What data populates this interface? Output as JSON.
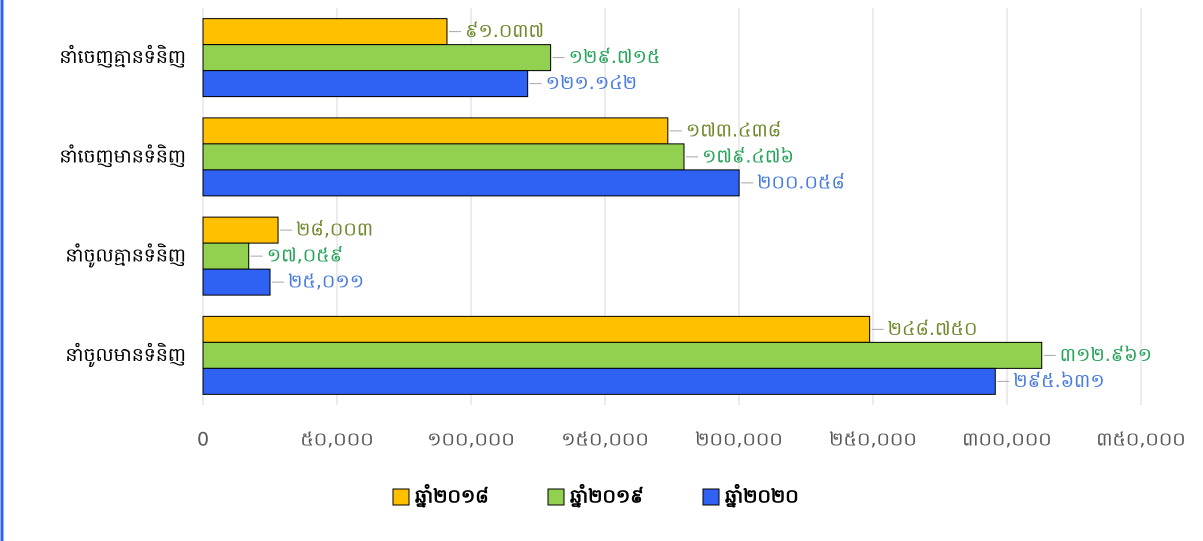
{
  "chart_data": {
    "type": "bar",
    "orientation": "horizontal",
    "categories": [
      "នាំចេញគ្មានទំនិញ",
      "នាំចេញមានទំនិញ",
      "នាំចូលគ្មានទំនិញ",
      "នាំចូលមានទំនិញ"
    ],
    "series": [
      {
        "name": "ឆ្នាំ២០១៨",
        "color": "#ffc000",
        "label_color": "#6f8a2c",
        "values": [
          91037,
          173438,
          28003,
          248750
        ],
        "value_labels": [
          "៩១.០៣៧",
          "១៧៣.៤៣៨",
          "២៨,០០៣",
          "២៤៨.៧៥០"
        ]
      },
      {
        "name": "ឆ្នាំ២០១៩",
        "color": "#92d050",
        "label_color": "#27a35a",
        "values": [
          129715,
          179476,
          17059,
          312961
        ],
        "value_labels": [
          "១២៩.៧១៥",
          "១៧៩.៤៧៦",
          "១៧,០៥៩",
          "៣១២.៩៦១"
        ]
      },
      {
        "name": "ឆ្នាំ២០២០",
        "color": "#2f62f2",
        "label_color": "#4a7ce0",
        "values": [
          121142,
          200058,
          25011,
          295631
        ],
        "value_labels": [
          "១២១.១៤២",
          "២០០.០៥៨",
          "២៥,០១១",
          "២៩៥.៦៣១"
        ]
      }
    ],
    "xlim": [
      0,
      350000
    ],
    "xticks": [
      0,
      {
        "value": 50000,
        "label": "៥០,០០០"
      },
      {
        "value": 100000,
        "label": "១០០,០០០"
      },
      {
        "value": 150000,
        "label": "១៥០,០០០"
      },
      {
        "value": 200000,
        "label": "២០០,០០០"
      },
      {
        "value": 250000,
        "label": "២៥០,០០០"
      },
      {
        "value": 300000,
        "label": "៣០០,០០០"
      },
      {
        "value": 350000,
        "label": "៣៥០,០០០"
      }
    ],
    "grid": true,
    "legend": "bottom"
  }
}
